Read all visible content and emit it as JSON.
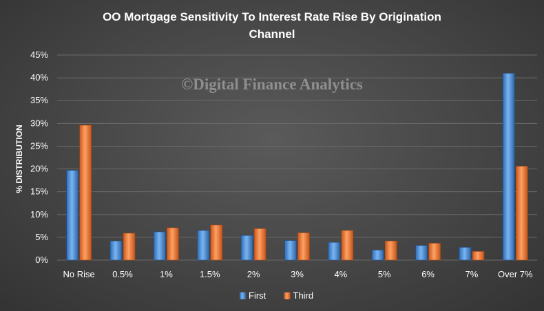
{
  "chart_data": {
    "type": "bar",
    "title_line1": "OO Mortgage Sensitivity  To Interest Rate Rise By Origination",
    "title_line2": "Channel",
    "ylabel": "% DISTRIBUTION",
    "watermark": "©Digital Finance Analytics",
    "categories": [
      "No Rise",
      "0.5%",
      "1%",
      "1.5%",
      "2%",
      "3%",
      "4%",
      "5%",
      "6%",
      "7%",
      "Over 7%"
    ],
    "series": [
      {
        "name": "First",
        "values": [
          19.7,
          4.2,
          6.2,
          6.5,
          5.4,
          4.3,
          3.9,
          2.2,
          3.2,
          2.8,
          41.0
        ],
        "color": "#4a8fd8"
      },
      {
        "name": "Third",
        "values": [
          29.6,
          5.9,
          7.1,
          7.7,
          6.9,
          6.0,
          6.5,
          4.2,
          3.7,
          1.9,
          20.6
        ],
        "color": "#ee7a30"
      }
    ],
    "ylim": [
      0,
      45
    ],
    "yticks": [
      "0%",
      "5%",
      "10%",
      "15%",
      "20%",
      "25%",
      "30%",
      "35%",
      "40%",
      "45%"
    ],
    "grid": true,
    "legend_position": "bottom"
  }
}
